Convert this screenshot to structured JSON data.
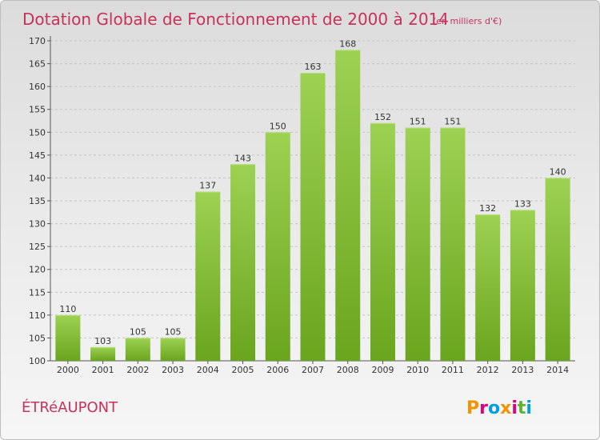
{
  "chart_data": {
    "type": "bar",
    "title": "Dotation Globale de Fonctionnement de 2000 à 2014",
    "subtitle": "(en milliers d'€)",
    "xlabel": "",
    "ylabel": "",
    "categories": [
      "2000",
      "2001",
      "2002",
      "2003",
      "2004",
      "2005",
      "2006",
      "2007",
      "2008",
      "2009",
      "2010",
      "2011",
      "2012",
      "2013",
      "2014"
    ],
    "values": [
      110,
      103,
      105,
      105,
      137,
      143,
      150,
      163,
      168,
      152,
      151,
      151,
      132,
      133,
      140
    ],
    "ylim": [
      100,
      170
    ],
    "yticks": [
      100,
      105,
      110,
      115,
      120,
      125,
      130,
      135,
      140,
      145,
      150,
      155,
      160,
      165,
      170
    ],
    "grid": true,
    "bar_color_top": "#9dd152",
    "bar_color_bottom": "#6aa51e"
  },
  "footer": {
    "commune": "ÉTRéAUPONT",
    "logo_letters": [
      "P",
      "r",
      "o",
      "x",
      "i",
      "t",
      "i"
    ],
    "logo_colors": [
      "#f29400",
      "#e2007a",
      "#00a0e3",
      "#f29400",
      "#e2007a",
      "#5fb42d",
      "#00a0e3"
    ]
  }
}
